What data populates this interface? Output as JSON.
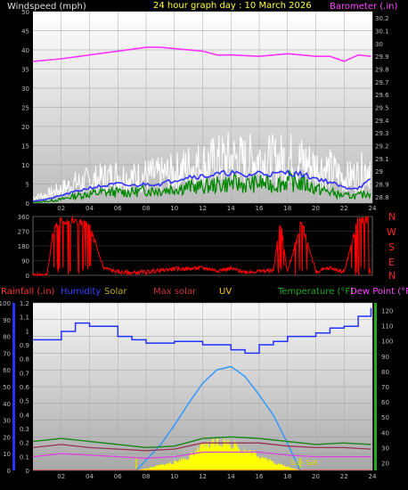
{
  "header": {
    "wind_label": "Windspeed (mph)",
    "title": "24 hour graph day : 10 March 2026",
    "baro_label": "Barometer (.in)"
  },
  "bottom_header": {
    "rain": "Rainfall (.in)",
    "humidity": "Humidity",
    "solar": "Solar",
    "max_solar": "Max solar",
    "uv": "UV",
    "temperature": "Temperature (°F)",
    "dew": "Dew Point (°F)"
  },
  "direction_labels": [
    "N",
    "W",
    "S",
    "E",
    "N"
  ],
  "sun_set_label": "Sun Set",
  "colors": {
    "wind": "#ffffff",
    "gust_avg": "#3333ff",
    "wind_avg": "#008800",
    "baro": "#ff33ff",
    "dir": "#ff0000",
    "humidity": "#2233ff",
    "maxsolar": "#3399ff",
    "solar": "#ffff00",
    "temp": "#228822",
    "dew": "#cc33cc",
    "rain": "#ff2222"
  },
  "chart_data": [
    {
      "type": "line",
      "name": "wind-barometer",
      "x_ticks": [
        "02",
        "04",
        "06",
        "08",
        "10",
        "12",
        "14",
        "16",
        "18",
        "20",
        "22",
        "24"
      ],
      "x_range": [
        0,
        24
      ],
      "y_left_ticks": [
        "0",
        "5",
        "10",
        "15",
        "20",
        "25",
        "30",
        "35",
        "40",
        "45",
        "50"
      ],
      "y_left_range": [
        0,
        50
      ],
      "y_right_ticks": [
        "28.8",
        "28.9",
        "29",
        "29.1",
        "29.2",
        "29.3",
        "29.4",
        "29.5",
        "29.6",
        "29.7",
        "29.8",
        "29.9",
        "30",
        "30.1",
        "30.2"
      ],
      "y_right_range": [
        28.75,
        30.25
      ],
      "series": {
        "wind": {
          "x": [
            0,
            1,
            2,
            3,
            4,
            5,
            6,
            7,
            8,
            9,
            10,
            11,
            12,
            13,
            14,
            15,
            16,
            17,
            18,
            19,
            20,
            21,
            22,
            23,
            23.9
          ],
          "y": [
            2,
            3,
            5,
            7,
            8,
            9,
            10,
            9,
            10,
            10,
            11,
            13,
            14,
            15,
            16,
            15,
            16,
            15,
            16,
            15,
            13,
            12,
            9,
            10,
            14
          ]
        },
        "gust_avg": {
          "x": [
            0,
            1,
            2,
            3,
            4,
            5,
            6,
            7,
            8,
            9,
            10,
            11,
            12,
            13,
            14,
            15,
            16,
            17,
            18,
            19,
            20,
            21,
            22,
            23,
            23.9
          ],
          "y": [
            0.5,
            1,
            2,
            3,
            4,
            4.5,
            5,
            4.5,
            5,
            5,
            6,
            7,
            7,
            7.5,
            8,
            7,
            8,
            7.5,
            8,
            7.5,
            6.5,
            5.5,
            4,
            4,
            6
          ]
        },
        "wind_avg": {
          "x": [
            0,
            1,
            2,
            3,
            4,
            5,
            6,
            7,
            8,
            9,
            10,
            11,
            12,
            13,
            14,
            15,
            16,
            17,
            18,
            19,
            20,
            21,
            22,
            23,
            23.9
          ],
          "y": [
            0.2,
            0.5,
            1,
            2,
            2.5,
            3,
            3,
            3,
            3.5,
            3.5,
            4,
            4.5,
            4.5,
            5,
            5.5,
            5,
            5.5,
            5,
            6,
            5.5,
            4,
            3,
            2,
            2,
            3
          ]
        },
        "barometer": {
          "x": [
            0,
            2,
            4,
            6,
            8,
            9,
            10,
            12,
            13,
            14,
            16,
            18,
            19,
            20,
            21,
            22,
            23,
            23.9
          ],
          "y": [
            29.86,
            29.88,
            29.91,
            29.94,
            29.97,
            29.97,
            29.96,
            29.94,
            29.91,
            29.91,
            29.9,
            29.92,
            29.91,
            29.9,
            29.9,
            29.86,
            29.91,
            29.9
          ]
        }
      }
    },
    {
      "type": "line",
      "name": "wind-direction",
      "x_range": [
        0,
        24
      ],
      "y_ticks": [
        "0",
        "90",
        "180",
        "270",
        "360"
      ],
      "y_range": [
        0,
        360
      ],
      "series": {
        "direction": {
          "x": [
            0,
            1,
            1.5,
            2,
            3,
            4,
            5,
            6,
            7,
            8,
            9,
            10,
            11,
            12,
            13,
            14,
            15,
            16,
            17,
            17.5,
            18,
            19,
            20,
            21,
            22,
            23,
            23.9
          ],
          "y": [
            0,
            0,
            300,
            340,
            330,
            300,
            45,
            20,
            15,
            20,
            30,
            40,
            40,
            45,
            30,
            40,
            20,
            25,
            30,
            320,
            20,
            330,
            20,
            45,
            20,
            340,
            340
          ]
        }
      }
    },
    {
      "type": "line",
      "name": "rain-humidity-solar-temperature",
      "x_ticks": [
        "02",
        "04",
        "06",
        "08",
        "10",
        "12",
        "14",
        "16",
        "18",
        "20",
        "22",
        "24"
      ],
      "x_range": [
        0,
        24
      ],
      "y_left_ticks": [
        "0",
        "10",
        "20",
        "30",
        "40",
        "50",
        "60",
        "70",
        "80",
        "90",
        "100"
      ],
      "y_left_range": [
        0,
        100
      ],
      "y_rain_ticks": [
        "0",
        "0.1",
        "0.2",
        "0.3",
        "0.4",
        "0.5",
        "0.6",
        "0.7",
        "0.8",
        "0.9",
        "1",
        "1.1",
        "1.2"
      ],
      "y_rain_range": [
        0,
        1.2
      ],
      "y_right_ticks": [
        "20",
        "30",
        "40",
        "50",
        "60",
        "70",
        "80",
        "90",
        "100",
        "110",
        "120"
      ],
      "y_right_range": [
        15,
        125
      ],
      "series": {
        "humidity": {
          "x": [
            0,
            2,
            3,
            4,
            6,
            7,
            8,
            10,
            12,
            14,
            15,
            16,
            17,
            18,
            20,
            21,
            22,
            23,
            23.9
          ],
          "y": [
            78,
            83,
            88,
            86,
            80,
            78,
            76,
            77,
            75,
            72,
            70,
            75,
            77,
            80,
            82,
            85,
            86,
            92,
            97
          ]
        },
        "temperature": {
          "x": [
            0,
            2,
            4,
            6,
            8,
            10,
            12,
            14,
            16,
            18,
            20,
            22,
            23.9
          ],
          "y": [
            34,
            36,
            34,
            32,
            30,
            31,
            36,
            37,
            36,
            34,
            32,
            33,
            32
          ]
        },
        "dew_point": {
          "x": [
            0,
            2,
            4,
            6,
            8,
            10,
            12,
            14,
            16,
            18,
            20,
            22,
            23.9
          ],
          "y": [
            30,
            32,
            30,
            29,
            28,
            29,
            33,
            33,
            33,
            31,
            30,
            30,
            29
          ]
        },
        "temp_low": {
          "x": [
            0,
            2,
            4,
            6,
            8,
            10,
            12,
            14,
            16,
            18,
            20,
            22,
            23.9
          ],
          "y": [
            24,
            26,
            25,
            24,
            23,
            24,
            27,
            27,
            27,
            25,
            24,
            24,
            24
          ]
        },
        "max_solar": {
          "x": [
            7.3,
            9,
            10,
            11,
            12,
            13,
            14,
            15,
            16,
            17,
            18,
            18.9
          ],
          "y": [
            0,
            15,
            27,
            40,
            52,
            60,
            62,
            56,
            45,
            33,
            16,
            0
          ]
        },
        "solar": {
          "x": [
            7.3,
            8,
            9,
            10,
            11,
            12,
            13,
            14,
            15,
            16,
            17,
            18,
            18.9
          ],
          "y": [
            0,
            1,
            3,
            5,
            8,
            14,
            18,
            16,
            12,
            9,
            5,
            2,
            0
          ]
        },
        "rain": {
          "x": [
            0,
            23.9
          ],
          "y": [
            0,
            0
          ]
        }
      }
    }
  ]
}
